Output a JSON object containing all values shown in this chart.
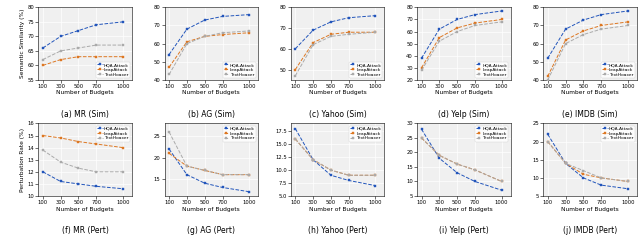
{
  "budgets": [
    100,
    300,
    500,
    700,
    1000
  ],
  "sim_data": {
    "MR": {
      "HQA": [
        66,
        70,
        72,
        74,
        75
      ],
      "Leap": [
        60,
        62,
        63,
        63,
        63
      ],
      "Text": [
        62,
        65,
        66,
        67,
        67
      ]
    },
    "AG": {
      "HQA": [
        54,
        68,
        73,
        75,
        76
      ],
      "Leap": [
        47,
        61,
        64,
        65,
        66
      ],
      "Text": [
        43,
        60,
        64,
        66,
        67
      ]
    },
    "Yahoo": {
      "HQA": [
        60,
        69,
        73,
        75,
        76
      ],
      "Leap": [
        50,
        63,
        67,
        68,
        68
      ],
      "Text": [
        47,
        62,
        66,
        67,
        68
      ]
    },
    "Yelp": {
      "HQA": [
        38,
        62,
        70,
        74,
        77
      ],
      "Leap": [
        30,
        55,
        63,
        67,
        70
      ],
      "Text": [
        28,
        52,
        60,
        65,
        68
      ]
    },
    "IMDB": {
      "HQA": [
        52,
        68,
        73,
        76,
        78
      ],
      "Leap": [
        42,
        62,
        67,
        70,
        72
      ],
      "Text": [
        40,
        60,
        65,
        68,
        70
      ]
    }
  },
  "pert_data": {
    "MR": {
      "HQA": [
        12.0,
        11.2,
        11.0,
        10.8,
        10.6
      ],
      "Leap": [
        15.0,
        14.8,
        14.5,
        14.3,
        14.0
      ],
      "Text": [
        13.8,
        12.8,
        12.3,
        12.0,
        12.0
      ]
    },
    "AG": {
      "HQA": [
        22,
        16,
        14,
        13,
        12
      ],
      "Leap": [
        21,
        18,
        17,
        16,
        16
      ],
      "Text": [
        26,
        18,
        17,
        16,
        16
      ]
    },
    "Yahoo": {
      "HQA": [
        18,
        12,
        9,
        8,
        7
      ],
      "Leap": [
        16,
        12,
        10,
        9,
        9
      ],
      "Text": [
        16,
        12,
        10,
        9,
        9
      ]
    },
    "Yelp": {
      "HQA": [
        28,
        18,
        13,
        10,
        7
      ],
      "Leap": [
        25,
        19,
        16,
        14,
        10
      ],
      "Text": [
        25,
        19,
        16,
        14,
        10
      ]
    },
    "IMDB": {
      "HQA": [
        22,
        14,
        10,
        8,
        7
      ],
      "Leap": [
        20,
        14,
        11,
        10,
        9
      ],
      "Text": [
        20,
        14,
        12,
        10,
        9
      ]
    }
  },
  "sim_ylims": {
    "MR": [
      55,
      80
    ],
    "AG": [
      40,
      80
    ],
    "Yahoo": [
      45,
      80
    ],
    "Yelp": [
      20,
      80
    ],
    "IMDB": [
      40,
      80
    ]
  },
  "pert_ylims": {
    "MR": [
      10,
      16
    ],
    "AG": [
      11,
      28
    ],
    "Yahoo": [
      5,
      19
    ],
    "Yelp": [
      5,
      30
    ],
    "IMDB": [
      5,
      25
    ]
  },
  "colors": {
    "HQA": "#2255bb",
    "Leap": "#dd7722",
    "Text": "#aaaaaa"
  },
  "datasets": [
    "MR",
    "AG",
    "Yahoo",
    "Yelp",
    "IMDB"
  ],
  "subplot_labels_top": [
    "(a) MR (Sim)",
    "(b) AG (Sim)",
    "(c) Yahoo (Sim)",
    "(d) Yelp (Sim)",
    "(e) IMDB (Sim)"
  ],
  "subplot_labels_bot": [
    "(f) MR (Pert)",
    "(g) AG (Pert)",
    "(h) Yahoo (Pert)",
    "(i) Yelp (Pert)",
    "(j) IMDB (Pert)"
  ],
  "ylabel_sim": "Semantic Similarity (%)",
  "ylabel_pert": "Perturbation Rate (%)",
  "xlabel": "Number of Budgets",
  "legend_labels": [
    "HQA-Attack",
    "LeapAttack",
    "TextHoaxer"
  ]
}
